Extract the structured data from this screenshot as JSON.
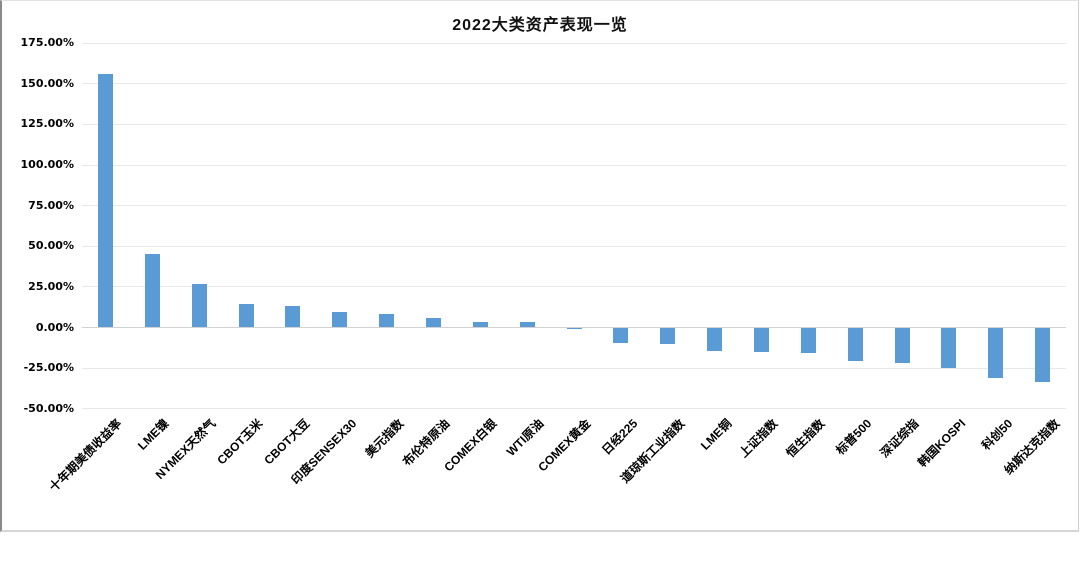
{
  "chart_data": {
    "type": "bar",
    "title": "2022大类资产表现一览",
    "categories": [
      "十年期美债收益率",
      "LME镍",
      "NYMEX天然气",
      "CBOT玉米",
      "CBOT大豆",
      "印度SENSEX30",
      "美元指数",
      "布伦特原油",
      "COMEX白银",
      "WTI原油",
      "COMEX黄金",
      "日经225",
      "道琼斯工业指数",
      "LME铜",
      "上证指数",
      "恒生指数",
      "标普500",
      "深证综指",
      "韩国KOSPI",
      "科创50",
      "纳斯达克指数"
    ],
    "values": [
      156,
      45,
      27,
      14.5,
      13,
      9.7,
      8.5,
      6,
      3.5,
      3.3,
      -0.8,
      -9.7,
      -10,
      -14.5,
      -15.1,
      -15.8,
      -20.5,
      -22,
      -25,
      -31,
      -33.5
    ],
    "unit": "%",
    "ylim": [
      -50,
      175
    ],
    "yticks": [
      175,
      150,
      125,
      100,
      75,
      50,
      25,
      0,
      -25,
      -50
    ],
    "ytick_labels": [
      "175.00%",
      "150.00%",
      "125.00%",
      "100.00%",
      "75.00%",
      "50.00%",
      "25.00%",
      "0.00%",
      "-25.00%",
      "-50.00%"
    ],
    "grid": "horizontal",
    "legend": "none",
    "bar_color": "#5b9bd5"
  }
}
